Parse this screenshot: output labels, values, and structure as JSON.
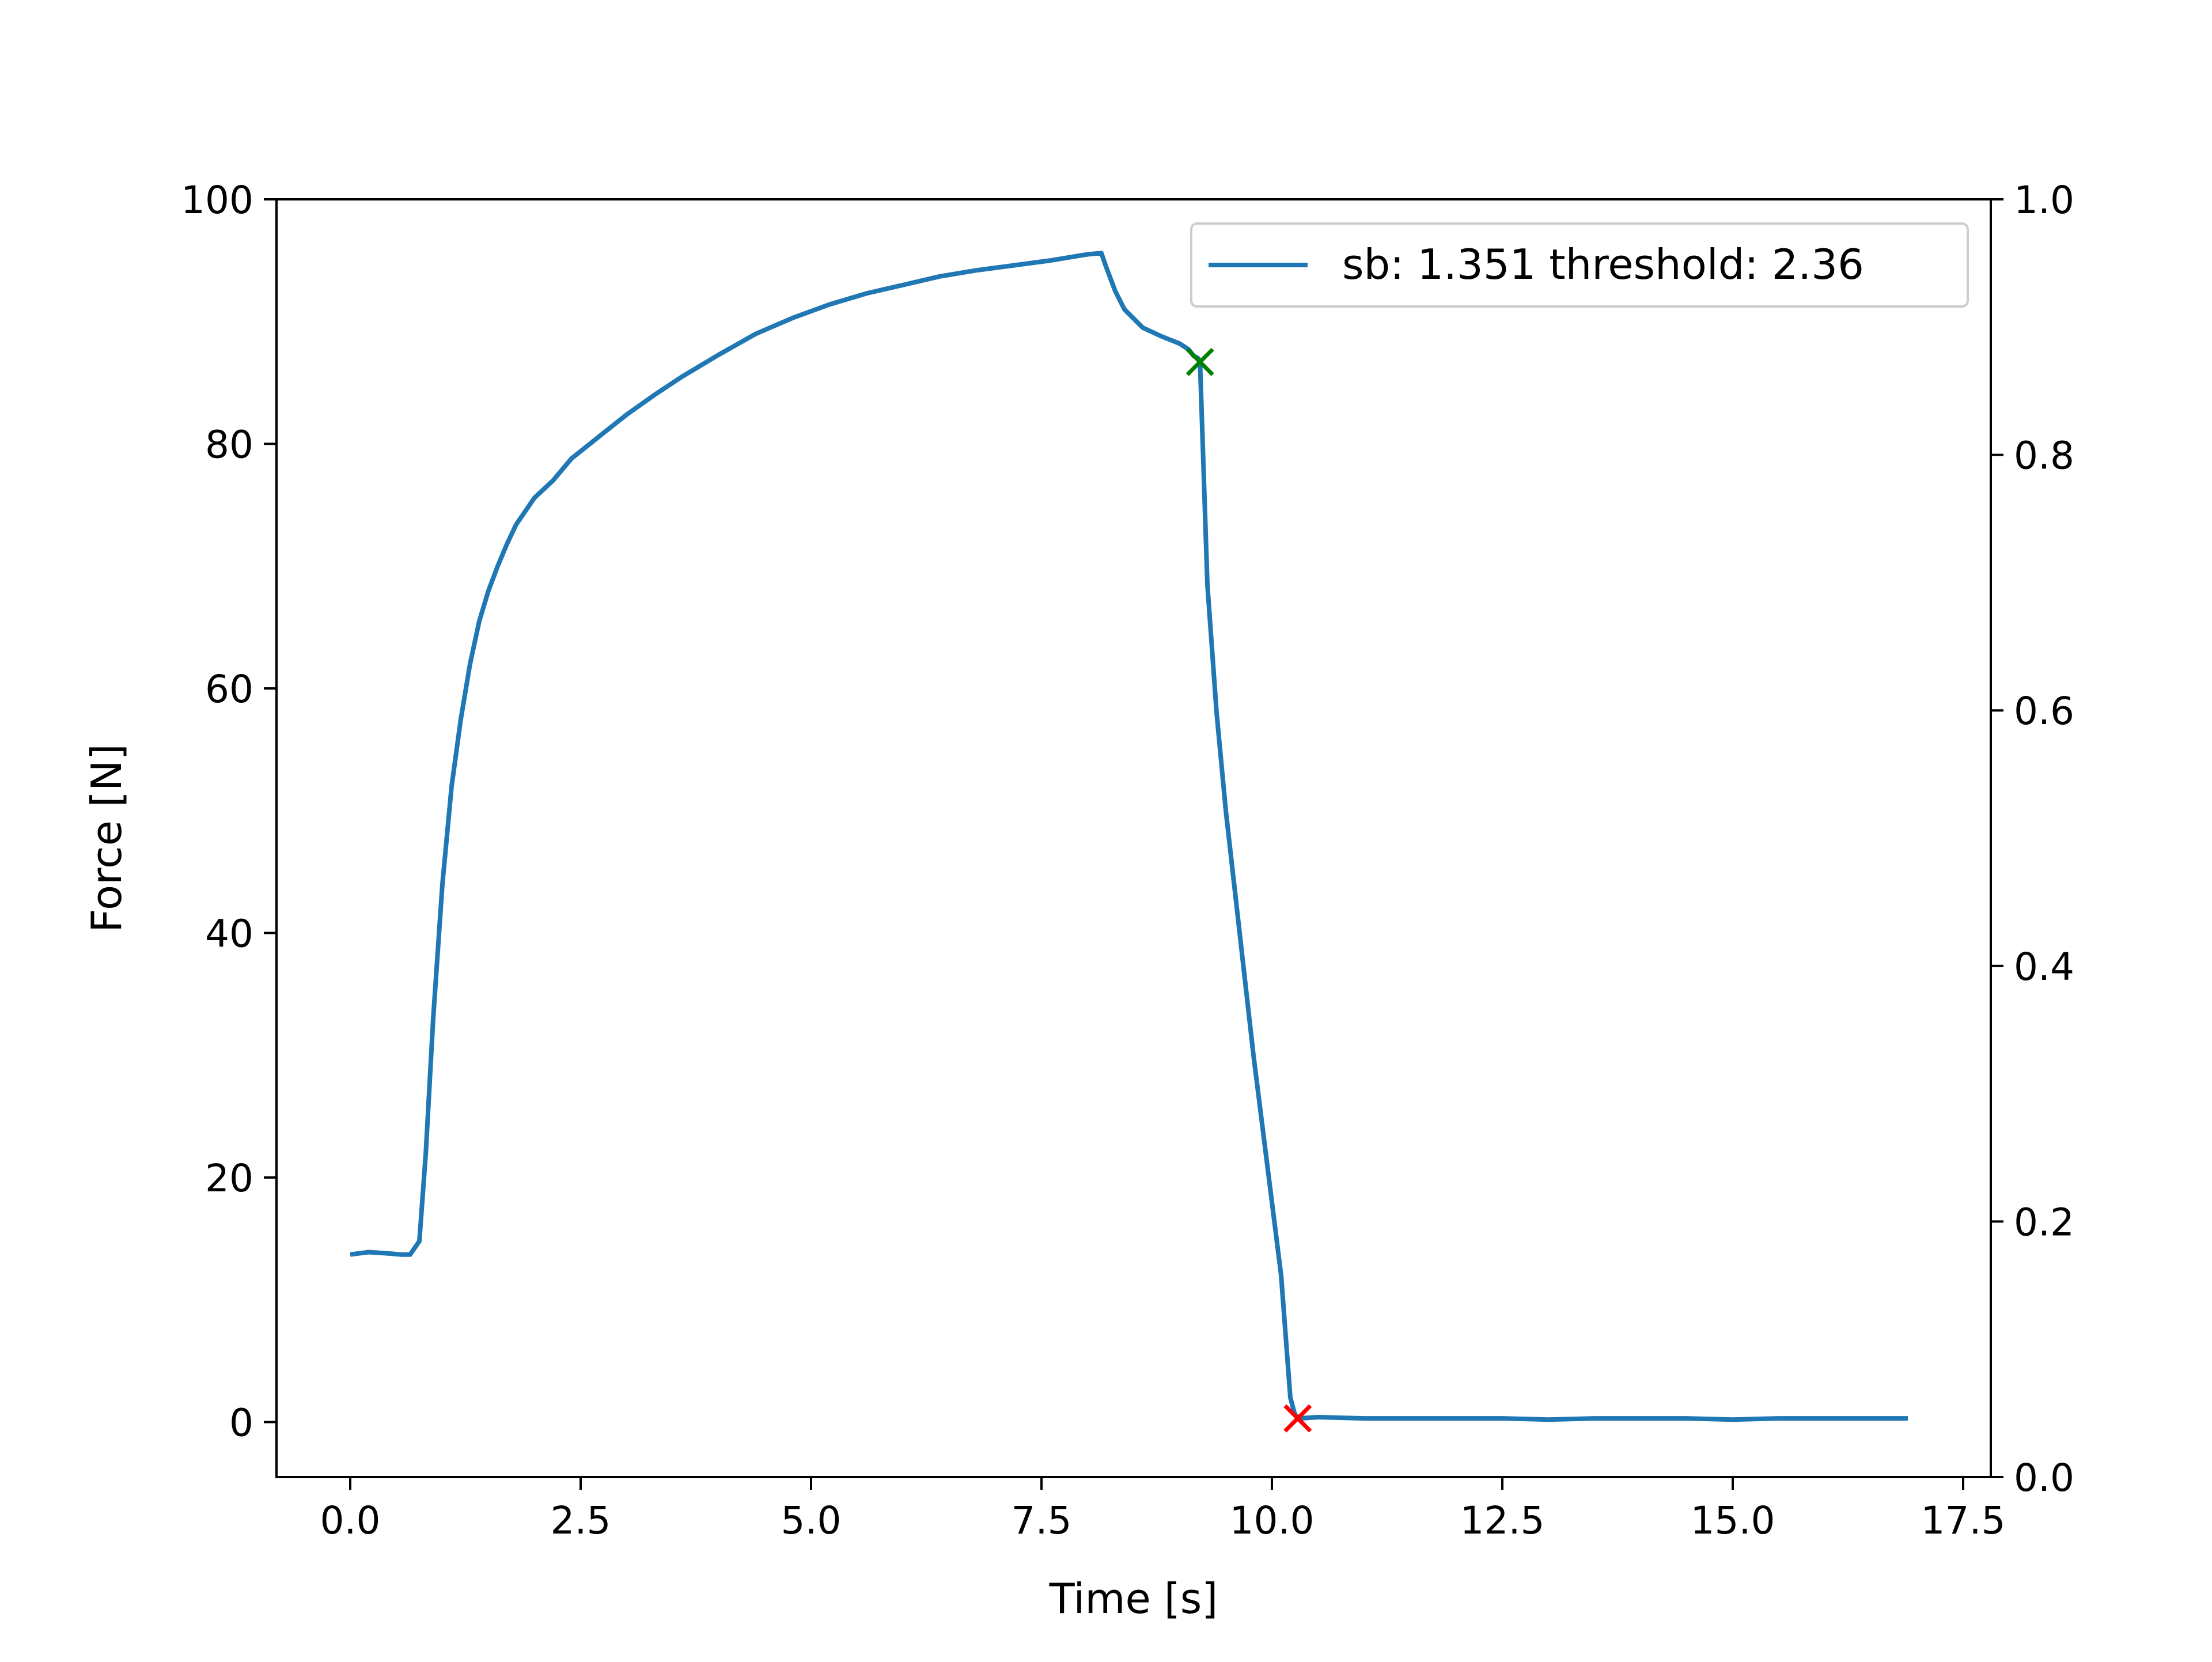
{
  "chart_data": {
    "type": "line",
    "title": "",
    "xlabel": "Time [s]",
    "ylabel": "Force [N]",
    "y2label": "",
    "xlim": [
      -0.8,
      17.8
    ],
    "ylim": [
      -4.5,
      100
    ],
    "y2lim": [
      0.0,
      1.0
    ],
    "x_ticks": [
      0.0,
      2.5,
      5.0,
      7.5,
      10.0,
      12.5,
      15.0,
      17.5
    ],
    "x_tick_labels": [
      "0.0",
      "2.5",
      "5.0",
      "7.5",
      "10.0",
      "12.5",
      "15.0",
      "17.5"
    ],
    "y_ticks": [
      0,
      20,
      40,
      60,
      80,
      100
    ],
    "y_tick_labels": [
      "0",
      "20",
      "40",
      "60",
      "80",
      "100"
    ],
    "y2_ticks": [
      0.0,
      0.2,
      0.4,
      0.6,
      0.8,
      1.0
    ],
    "y2_tick_labels": [
      "0.0",
      "0.2",
      "0.4",
      "0.6",
      "0.8",
      "1.0"
    ],
    "grid": false,
    "legend_position": "top-right",
    "series": [
      {
        "name": "sb: 1.351 threshold: 2.36",
        "color": "#1f77b4",
        "x": [
          0.0,
          0.2,
          0.4,
          0.55,
          0.65,
          0.75,
          0.82,
          0.9,
          1.0,
          1.1,
          1.2,
          1.3,
          1.4,
          1.5,
          1.6,
          1.7,
          1.8,
          1.9,
          2.0,
          2.2,
          2.4,
          2.6,
          2.8,
          3.0,
          3.3,
          3.6,
          4.0,
          4.4,
          4.8,
          5.2,
          5.6,
          6.0,
          6.4,
          6.8,
          7.2,
          7.6,
          8.0,
          8.15,
          8.2,
          8.3,
          8.4,
          8.6,
          8.8,
          9.0,
          9.1,
          9.15,
          9.2,
          9.22,
          9.3,
          9.4,
          9.5,
          9.8,
          10.1,
          10.2,
          10.25,
          10.3,
          10.5,
          11.0,
          11.5,
          12.0,
          12.5,
          13.0,
          13.5,
          14.0,
          14.5,
          15.0,
          15.5,
          16.0,
          16.5,
          16.9
        ],
        "y": [
          13.7,
          13.9,
          13.8,
          13.7,
          13.7,
          14.8,
          22.0,
          33.0,
          44.0,
          52.0,
          57.5,
          62.0,
          65.5,
          68.0,
          70.0,
          71.8,
          73.4,
          74.5,
          75.6,
          77.0,
          78.8,
          80.0,
          81.2,
          82.4,
          84.0,
          85.5,
          87.3,
          89.0,
          90.3,
          91.4,
          92.3,
          93.0,
          93.7,
          94.2,
          94.6,
          95.0,
          95.5,
          95.6,
          94.5,
          92.5,
          91.0,
          89.5,
          88.8,
          88.2,
          87.7,
          87.2,
          87.0,
          86.7,
          68.5,
          58.0,
          50.0,
          30.0,
          12.0,
          2.0,
          0.6,
          0.3,
          0.4,
          0.3,
          0.3,
          0.3,
          0.3,
          0.2,
          0.3,
          0.3,
          0.3,
          0.2,
          0.3,
          0.3,
          0.3,
          0.3
        ]
      }
    ],
    "markers": [
      {
        "x": 9.22,
        "y": 86.7,
        "symbol": "x",
        "color": "#008000"
      },
      {
        "x": 10.28,
        "y": 0.3,
        "symbol": "x",
        "color": "#ff0000"
      }
    ]
  }
}
